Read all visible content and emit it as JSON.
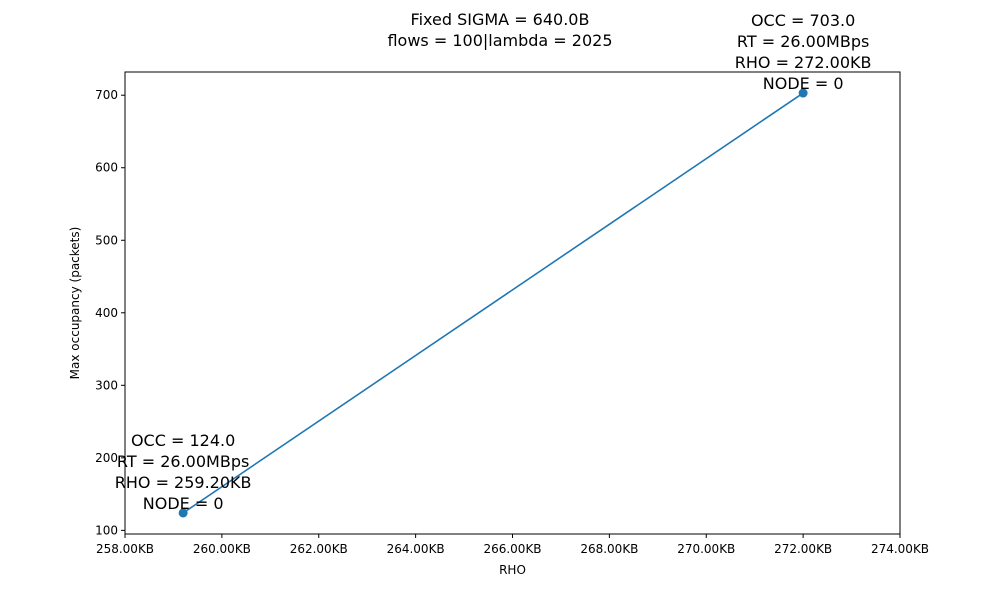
{
  "chart_data": {
    "type": "line",
    "title_lines": [
      "Fixed SIGMA = 640.0B",
      "flows = 100|lambda = 2025"
    ],
    "xlabel": "RHO",
    "ylabel": "Max occupancy (packets)",
    "xlim": [
      258.0,
      274.0
    ],
    "ylim": [
      95,
      732
    ],
    "x_ticks": [
      258,
      260,
      262,
      264,
      266,
      268,
      270,
      272,
      274
    ],
    "x_tick_labels": [
      "258.00KB",
      "260.00KB",
      "262.00KB",
      "264.00KB",
      "266.00KB",
      "268.00KB",
      "270.00KB",
      "272.00KB",
      "274.00KB"
    ],
    "y_ticks": [
      100,
      200,
      300,
      400,
      500,
      600,
      700
    ],
    "y_tick_labels": [
      "100",
      "200",
      "300",
      "400",
      "500",
      "600",
      "700"
    ],
    "grid": false,
    "series": [
      {
        "x": [
          259.2,
          272.0
        ],
        "y": [
          124.0,
          703.0
        ],
        "color": "#1f77b4",
        "marker": "circle"
      }
    ],
    "annotations": [
      {
        "x": 259.2,
        "y": 124.0,
        "lines": [
          "OCC = 124.0",
          "RT = 26.00MBps",
          "RHO = 259.20KB",
          "NODE = 0"
        ]
      },
      {
        "x": 272.0,
        "y": 703.0,
        "lines": [
          "OCC = 703.0",
          "RT = 26.00MBps",
          "RHO = 272.00KB",
          "NODE = 0"
        ]
      }
    ]
  }
}
